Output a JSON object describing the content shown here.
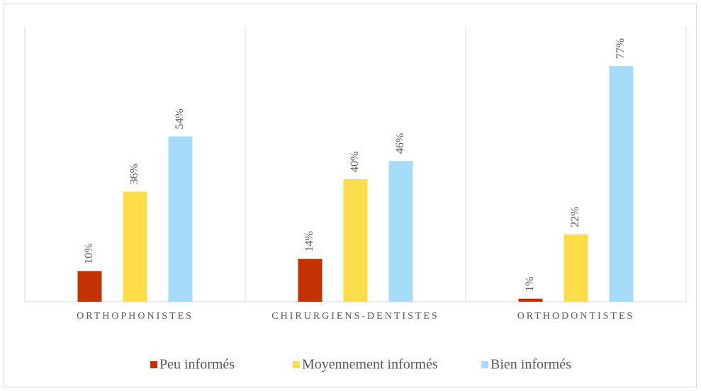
{
  "chart_data": {
    "type": "bar",
    "categories": [
      "ORTHOPHONISTES",
      "CHIRURGIENS-DENTISTES",
      "ORTHODONTISTES"
    ],
    "series": [
      {
        "name": "Peu informés",
        "color": "#c23100",
        "values": [
          10,
          14,
          1
        ],
        "value_labels": [
          "10%",
          "14%",
          "1%"
        ]
      },
      {
        "name": "Moyennement informés",
        "color": "#fddc4a",
        "values": [
          36,
          40,
          22
        ],
        "value_labels": [
          "36%",
          "40%",
          "22%"
        ]
      },
      {
        "name": "Bien informés",
        "color": "#a6dcf9",
        "values": [
          54,
          46,
          77
        ],
        "value_labels": [
          "54%",
          "46%",
          "77%"
        ]
      }
    ],
    "ylim": [
      0,
      90
    ],
    "legend": "bottom"
  }
}
